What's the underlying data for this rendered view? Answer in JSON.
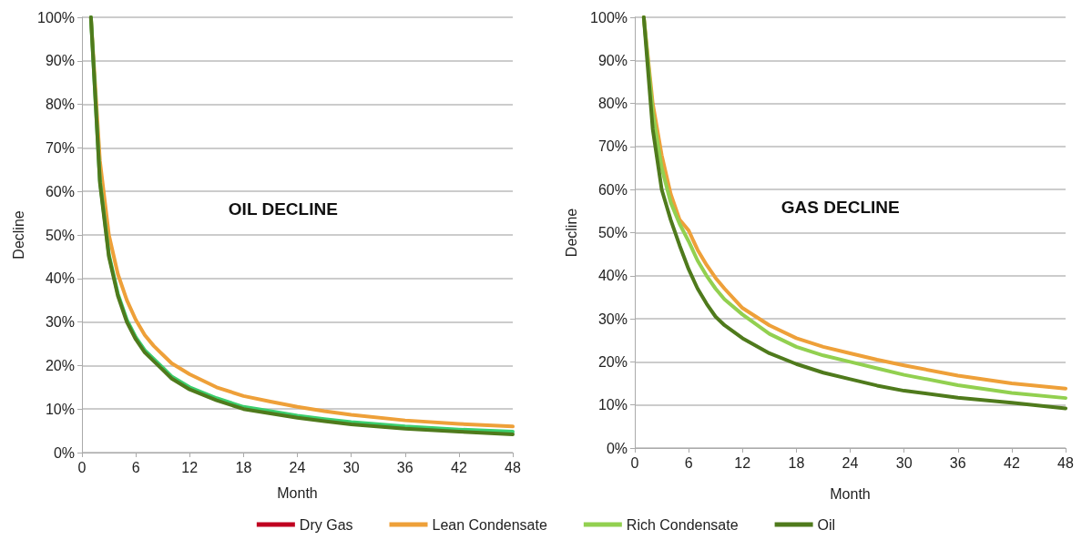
{
  "chart_data": [
    {
      "type": "line",
      "xlabel": "Month",
      "ylabel": "Decline",
      "annotations": [
        "OIL DECLINE"
      ],
      "xlim": [
        0,
        48
      ],
      "xticks": [
        0,
        6,
        12,
        18,
        24,
        30,
        36,
        42,
        48
      ],
      "ylim": [
        0,
        100
      ],
      "yticks": [
        {
          "value": 0,
          "label": "0%"
        },
        {
          "value": 10,
          "label": "10%"
        },
        {
          "value": 20,
          "label": "20%"
        },
        {
          "value": 30,
          "label": "30%"
        },
        {
          "value": 40,
          "label": "40%"
        },
        {
          "value": 50,
          "label": "50%"
        },
        {
          "value": 60,
          "label": "60%"
        },
        {
          "value": 70,
          "label": "70%"
        },
        {
          "value": 80,
          "label": "80%"
        },
        {
          "value": 90,
          "label": "90%"
        },
        {
          "value": 100,
          "label": "100%"
        }
      ],
      "grid": "y",
      "legend": false,
      "marker": "none",
      "line_style": "solid",
      "x": [
        1,
        2,
        3,
        4,
        5,
        6,
        7,
        8,
        9,
        10,
        12,
        15,
        18,
        21,
        24,
        27,
        30,
        36,
        42,
        48
      ],
      "series": [
        {
          "color": "#eea039",
          "values": [
            100,
            67,
            50,
            41,
            35,
            30.5,
            27,
            24.5,
            22.5,
            20.5,
            18,
            15,
            13,
            11.7,
            10.5,
            9.5,
            8.7,
            7.4,
            6.6,
            6.0
          ]
        },
        {
          "color": "#3ccf6e",
          "values": [
            100,
            62.5,
            45.5,
            36.5,
            30.5,
            26.5,
            23.5,
            21.5,
            19.5,
            17.5,
            15,
            12.5,
            10.5,
            9.5,
            8.5,
            7.7,
            7,
            6,
            5.3,
            4.8
          ]
        },
        {
          "color": "#4f7a1c",
          "values": [
            100,
            62,
            45,
            36,
            30,
            26,
            23,
            21,
            19,
            17,
            14.5,
            12,
            10,
            9,
            8,
            7.2,
            6.5,
            5.5,
            4.8,
            4.2
          ]
        }
      ]
    },
    {
      "type": "line",
      "xlabel": "Month",
      "ylabel": "Decline",
      "annotations": [
        "GAS DECLINE"
      ],
      "xlim": [
        0,
        48
      ],
      "xticks": [
        0,
        6,
        12,
        18,
        24,
        30,
        36,
        42,
        48
      ],
      "ylim": [
        0,
        100
      ],
      "yticks": [
        {
          "value": 0,
          "label": "0%"
        },
        {
          "value": 10,
          "label": "10%"
        },
        {
          "value": 20,
          "label": "20%"
        },
        {
          "value": 30,
          "label": "30%"
        },
        {
          "value": 40,
          "label": "40%"
        },
        {
          "value": 50,
          "label": "50%"
        },
        {
          "value": 60,
          "label": "60%"
        },
        {
          "value": 70,
          "label": "70%"
        },
        {
          "value": 80,
          "label": "80%"
        },
        {
          "value": 90,
          "label": "90%"
        },
        {
          "value": 100,
          "label": "100%"
        }
      ],
      "grid": "y",
      "legend": "bottom",
      "marker": "none",
      "line_style": "solid",
      "x": [
        1,
        2,
        3,
        4,
        5,
        6,
        7,
        8,
        9,
        10,
        12,
        15,
        18,
        21,
        24,
        27,
        30,
        36,
        42,
        48
      ],
      "series": [
        {
          "name": "Dry Gas",
          "color": "#c00020",
          "values": [
            null,
            null,
            null,
            null,
            null,
            null,
            null,
            null,
            null,
            null,
            null,
            null,
            null,
            null,
            null,
            null,
            null,
            null,
            null,
            null
          ]
        },
        {
          "name": "Lean Condensate",
          "color": "#eea039",
          "values": [
            100,
            80,
            68,
            59,
            53,
            50.5,
            46,
            42.5,
            39.5,
            37,
            32.5,
            28.5,
            25.5,
            23.5,
            22,
            20.5,
            19.2,
            16.8,
            15,
            13.8
          ]
        },
        {
          "name": "Rich Condensate",
          "color": "#92d050",
          "values": [
            100,
            78,
            65,
            57,
            52,
            48,
            43.5,
            40,
            37,
            34.5,
            31,
            26.5,
            23.5,
            21.5,
            20,
            18.5,
            17,
            14.6,
            12.8,
            11.6
          ]
        },
        {
          "name": "Oil",
          "color": "#4f7a1c",
          "values": [
            100,
            74,
            60,
            53,
            47,
            41.5,
            37,
            33.5,
            30.5,
            28.5,
            25.5,
            22,
            19.5,
            17.5,
            16,
            14.5,
            13.3,
            11.7,
            10.5,
            9.2
          ]
        }
      ]
    }
  ]
}
